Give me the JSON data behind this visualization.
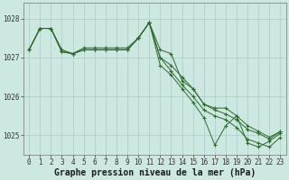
{
  "background_color": "#cce8e0",
  "grid_color": "#aacccc",
  "line_color": "#2d6a2d",
  "marker_color": "#2d6a2d",
  "xlabel": "Graphe pression niveau de la mer (hPa)",
  "xlabel_fontsize": 7,
  "tick_fontsize": 5.5,
  "ylim": [
    1024.5,
    1028.4
  ],
  "yticks": [
    1025,
    1026,
    1027,
    1028
  ],
  "xticks": [
    0,
    1,
    2,
    3,
    4,
    5,
    6,
    7,
    8,
    9,
    10,
    11,
    12,
    13,
    14,
    15,
    16,
    17,
    18,
    19,
    20,
    21,
    22,
    23
  ],
  "series": [
    [
      1027.2,
      1027.75,
      1027.75,
      1027.2,
      1027.1,
      1027.2,
      1027.2,
      1027.2,
      1027.2,
      1027.2,
      1027.5,
      1027.9,
      1027.2,
      1027.1,
      1026.4,
      1026.2,
      1025.8,
      1025.7,
      1025.7,
      1025.5,
      1025.25,
      1025.1,
      1024.95,
      1025.1
    ],
    [
      1027.2,
      1027.75,
      1027.75,
      1027.15,
      1027.1,
      1027.25,
      1027.25,
      1027.25,
      1027.25,
      1027.25,
      1027.5,
      1027.9,
      1026.8,
      1026.55,
      1026.2,
      1025.85,
      1025.45,
      1024.75,
      1025.25,
      1025.5,
      1024.8,
      1024.7,
      1024.85,
      1025.05
    ],
    [
      1027.2,
      1027.75,
      1027.75,
      1027.15,
      1027.1,
      1027.2,
      1027.2,
      1027.2,
      1027.2,
      1027.2,
      1027.5,
      1027.9,
      1027.0,
      1026.8,
      1026.5,
      1026.2,
      1025.8,
      1025.65,
      1025.55,
      1025.4,
      1025.15,
      1025.05,
      1024.9,
      1025.1
    ],
    [
      1027.2,
      1027.75,
      1027.75,
      1027.15,
      1027.1,
      1027.2,
      1027.2,
      1027.2,
      1027.2,
      1027.2,
      1027.5,
      1027.9,
      1027.0,
      1026.65,
      1026.3,
      1026.0,
      1025.65,
      1025.5,
      1025.4,
      1025.2,
      1024.9,
      1024.8,
      1024.7,
      1024.95
    ]
  ]
}
